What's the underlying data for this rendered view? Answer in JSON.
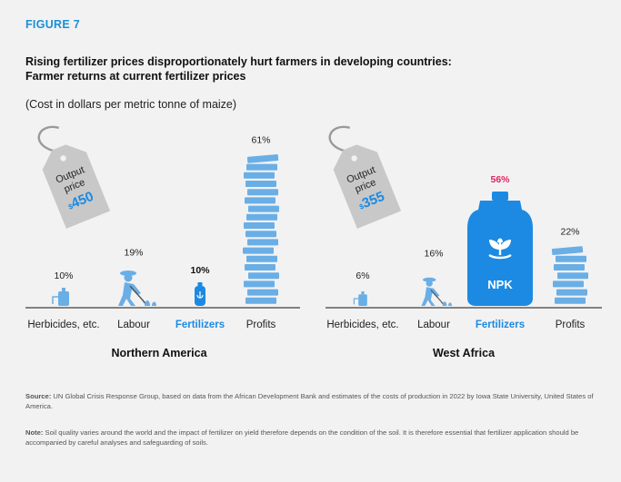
{
  "figure_label": "FIGURE 7",
  "title_line1": "Rising fertilizer prices disproportionately hurt farmers in developing countries:",
  "title_line2": "Farmer returns at current fertilizer prices",
  "subtitle": "(Cost in dollars per metric tonne of maize)",
  "source_label": "Source:",
  "source_text": "UN Global Crisis Response Group, based on data from the African Development Bank and estimates of the costs of production in 2022 by Iowa State University, United States of America.",
  "note_label": "Note:",
  "note_text": "Soil quality varies around the world and the impact of fertilizer on yield therefore depends on the condition of the soil. It is therefore essential that fertilizer application should be accompanied by careful analyses and safeguarding of soils.",
  "colors": {
    "accent_blue": "#1a8fd6",
    "icon_blue": "#6aaee6",
    "fertilizer_blue": "#1c8ae2",
    "highlight_red": "#e0245e",
    "tag_grey": "#c8c8c8"
  },
  "chart_data": [
    {
      "type": "bar",
      "region": "Northern America",
      "output_price_label": "Output price",
      "output_price_currency": "$",
      "output_price_value": "450",
      "categories": [
        "Herbicides, etc.",
        "Labour",
        "Fertilizers",
        "Profits"
      ],
      "values": [
        10,
        19,
        10,
        61
      ],
      "value_labels": [
        "10%",
        "19%",
        "10%",
        "61%"
      ],
      "highlight_category": "Fertilizers"
    },
    {
      "type": "bar",
      "region": "West Africa",
      "output_price_label": "Output price",
      "output_price_currency": "$",
      "output_price_value": "355",
      "categories": [
        "Herbicides, etc.",
        "Labour",
        "Fertilizers",
        "Profits"
      ],
      "values": [
        6,
        16,
        56,
        22
      ],
      "value_labels": [
        "6%",
        "16%",
        "56%",
        "22%"
      ],
      "highlight_category": "Fertilizers",
      "fertilizer_bottle_text": "NPK"
    }
  ]
}
